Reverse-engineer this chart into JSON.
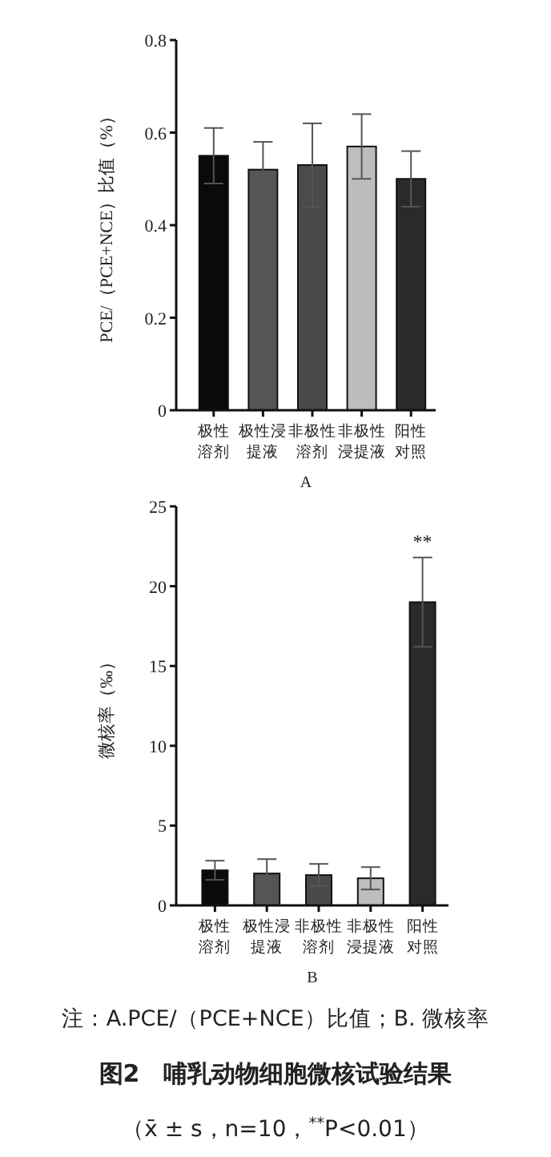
{
  "chart_data": [
    {
      "type": "bar",
      "ylabel": "PCE/（PCE+NCE）比值（%）",
      "xlabel": "A",
      "categories": [
        "极性溶剂",
        "极性浸提液",
        "非极性溶剂",
        "非极性浸提液",
        "阳性对照"
      ],
      "values": [
        0.55,
        0.52,
        0.53,
        0.57,
        0.5
      ],
      "errors": [
        0.06,
        0.06,
        0.09,
        0.07,
        0.06
      ],
      "colors": [
        "#0a0a0a",
        "#555555",
        "#4a4a4a",
        "#bdbdbd",
        "#2a2a2a"
      ],
      "ylim": [
        0,
        0.8
      ],
      "yticks": [
        0,
        0.2,
        0.4,
        0.6,
        0.8
      ],
      "grid": false
    },
    {
      "type": "bar",
      "ylabel": "微核率（‰）",
      "xlabel": "B",
      "categories": [
        "极性溶剂",
        "极性浸提液",
        "非极性溶剂",
        "非极性浸提液",
        "阳性对照"
      ],
      "values": [
        2.2,
        2.0,
        1.9,
        1.7,
        19.0
      ],
      "errors": [
        0.6,
        0.9,
        0.7,
        0.7,
        2.8
      ],
      "colors": [
        "#0a0a0a",
        "#555555",
        "#4a4a4a",
        "#bdbdbd",
        "#2a2a2a"
      ],
      "ylim": [
        0,
        25
      ],
      "yticks": [
        0,
        5,
        10,
        15,
        20,
        25
      ],
      "grid": false,
      "annotations": [
        {
          "text": "**",
          "x": "阳性对照",
          "y": 21.8
        },
        "注：A.PCE/（PCE+NCE）比值；B. 微核率",
        "图2　哺乳动物细胞微核试验结果",
        "（x̄ ± s，n=10，$^{**}$P<0.01）"
      ]
    }
  ]
}
